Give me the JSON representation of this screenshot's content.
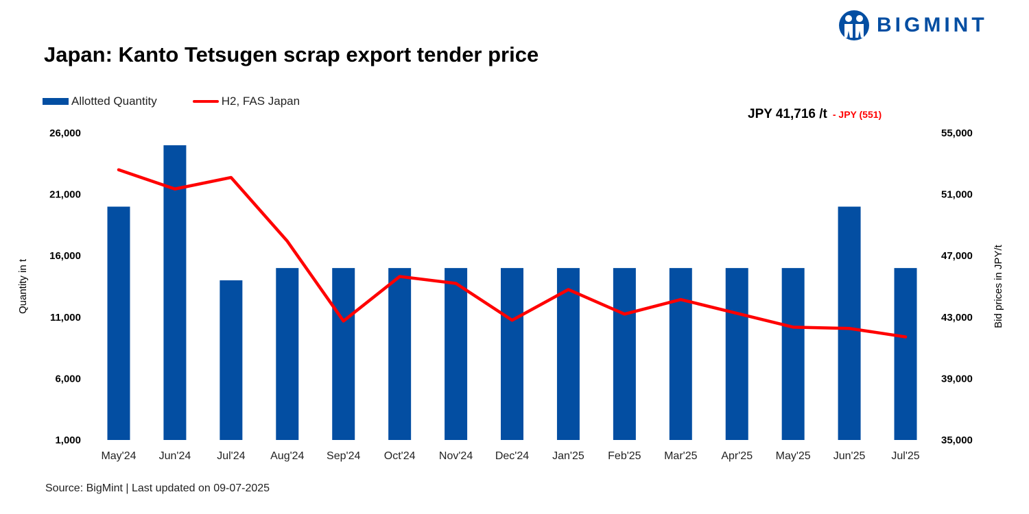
{
  "title": "Japan: Kanto Tetsugen scrap export tender price",
  "logo": {
    "text": "BIGMINT",
    "color": "#034ea2"
  },
  "latest": {
    "price": "JPY 41,716 /t",
    "change": "- JPY (551)"
  },
  "source": "Source: BigMint | Last updated on 09-07-2025",
  "chart_data": {
    "type": "bar+line",
    "title": "Japan: Kanto Tetsugen scrap export tender price",
    "categories": [
      "May'24",
      "Jun'24",
      "Jul'24",
      "Aug'24",
      "Sep'24",
      "Oct'24",
      "Nov'24",
      "Dec'24",
      "Jan'25",
      "Feb'25",
      "Mar'25",
      "Apr'25",
      "May'25",
      "Jun'25",
      "Jul'25"
    ],
    "series": [
      {
        "name": "Allotted Quantity",
        "type": "bar",
        "axis": "left",
        "color": "#034ea2",
        "values": [
          20000,
          25000,
          14000,
          15000,
          15000,
          15000,
          15000,
          15000,
          15000,
          15000,
          15000,
          15000,
          15000,
          20000,
          15000
        ]
      },
      {
        "name": "H2, FAS Japan",
        "type": "line",
        "axis": "right",
        "color": "#ff0000",
        "values": [
          52600,
          51350,
          52100,
          47950,
          42750,
          45650,
          45200,
          42800,
          44800,
          43200,
          44150,
          43250,
          42350,
          42267,
          41716
        ]
      }
    ],
    "ylabel_left": "Quantity in t",
    "ylabel_right": "Bid prices in JPY/t",
    "ylim_left": [
      1000,
      26000
    ],
    "yticks_left": [
      "1,000",
      "6,000",
      "11,000",
      "16,000",
      "21,000",
      "26,000"
    ],
    "ylim_right": [
      35000,
      55000
    ],
    "yticks_right": [
      "35,000",
      "39,000",
      "43,000",
      "47,000",
      "51,000",
      "55,000"
    ],
    "grid": false,
    "legend": "top-left"
  }
}
